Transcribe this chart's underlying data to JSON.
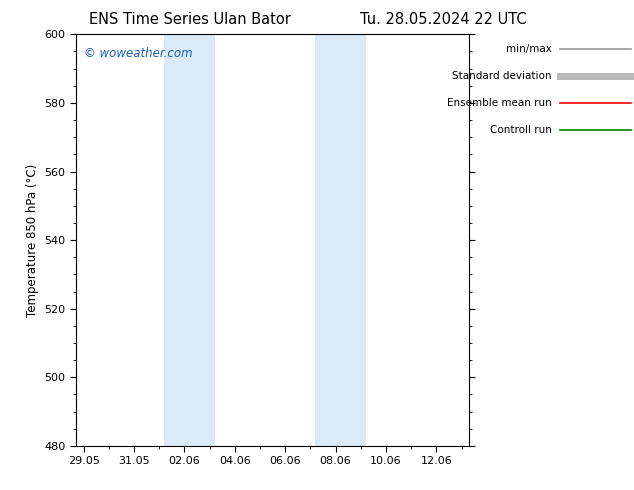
{
  "title_left": "ENS Time Series Ulan Bator",
  "title_right": "Tu. 28.05.2024 22 UTC",
  "ylabel": "Temperature 850 hPa (°C)",
  "watermark": "© woweather.com",
  "watermark_color": "#1a5fb4",
  "ylim": [
    480,
    600
  ],
  "yticks": [
    480,
    500,
    520,
    540,
    560,
    580,
    600
  ],
  "xtick_labels": [
    "29.05",
    "31.05",
    "02.06",
    "04.06",
    "06.06",
    "08.06",
    "10.06",
    "12.06"
  ],
  "xtick_positions": [
    0,
    2,
    4,
    6,
    8,
    10,
    12,
    14
  ],
  "xlim": [
    -0.3,
    15.3
  ],
  "shaded_bands": [
    {
      "x_start": 3.2,
      "x_end": 5.2,
      "color": "#daeaf7"
    },
    {
      "x_start": 9.2,
      "x_end": 11.2,
      "color": "#daeaf7"
    }
  ],
  "legend_items": [
    {
      "label": "min/max",
      "color": "#999999",
      "lw": 1.2,
      "style": "solid"
    },
    {
      "label": "Standard deviation",
      "color": "#bbbbbb",
      "lw": 5,
      "style": "solid"
    },
    {
      "label": "Ensemble mean run",
      "color": "#ff0000",
      "lw": 1.2,
      "style": "solid"
    },
    {
      "label": "Controll run",
      "color": "#008000",
      "lw": 1.2,
      "style": "solid"
    }
  ],
  "bg_color": "#ffffff",
  "spine_color": "#000000",
  "title_fontsize": 10.5,
  "ylabel_fontsize": 8.5,
  "tick_fontsize": 8,
  "watermark_fontsize": 8.5,
  "legend_fontsize": 7.5
}
